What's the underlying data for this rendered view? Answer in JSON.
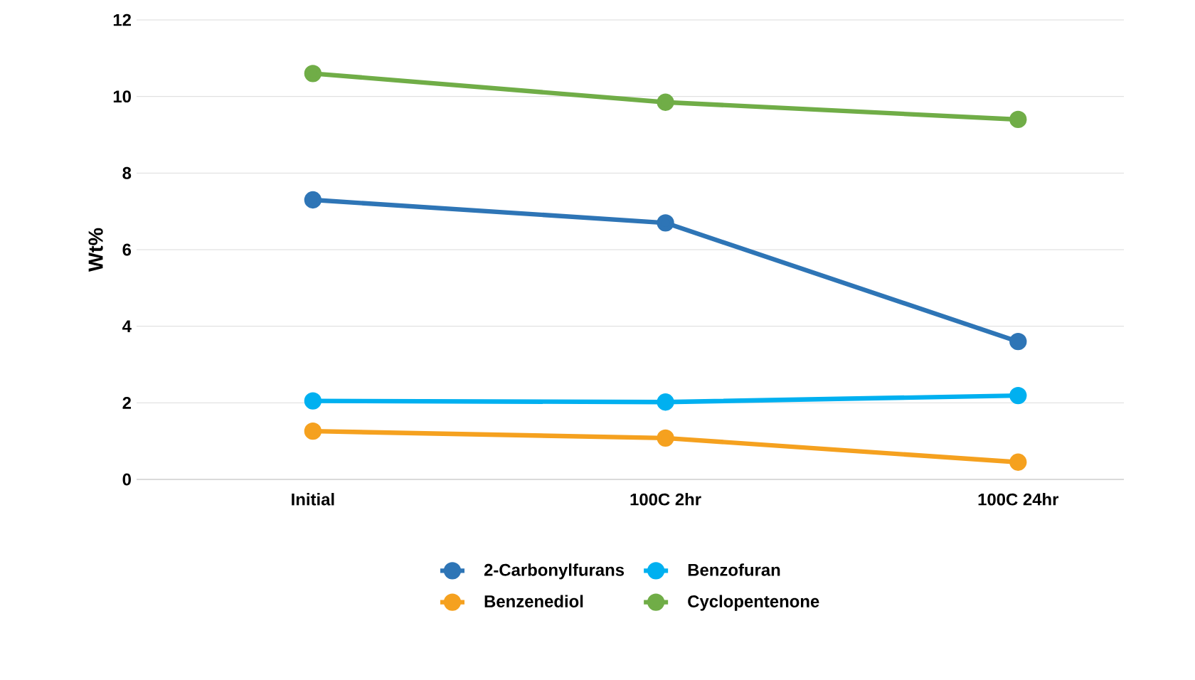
{
  "chart_data": {
    "type": "line",
    "ylabel": "Wt%",
    "categories": [
      "Initial",
      "100C 2hr",
      "100C 24hr"
    ],
    "series": [
      {
        "name": "2-Carbonylfurans",
        "color": "#2e75b6",
        "values": [
          7.3,
          6.7,
          3.6
        ]
      },
      {
        "name": "Benzofuran",
        "color": "#00b0f0",
        "values": [
          2.05,
          2.02,
          2.19
        ]
      },
      {
        "name": "Benzenediol",
        "color": "#f5a11f",
        "values": [
          1.26,
          1.08,
          0.45
        ]
      },
      {
        "name": "Cyclopentenone",
        "color": "#70ad47",
        "values": [
          10.6,
          9.85,
          9.4
        ]
      }
    ],
    "ylim": [
      0,
      12
    ],
    "yticks": [
      0,
      2,
      4,
      6,
      8,
      10,
      12
    ],
    "grid": "y",
    "legend": "bottom",
    "marker": "circle",
    "line_style": "solid"
  }
}
